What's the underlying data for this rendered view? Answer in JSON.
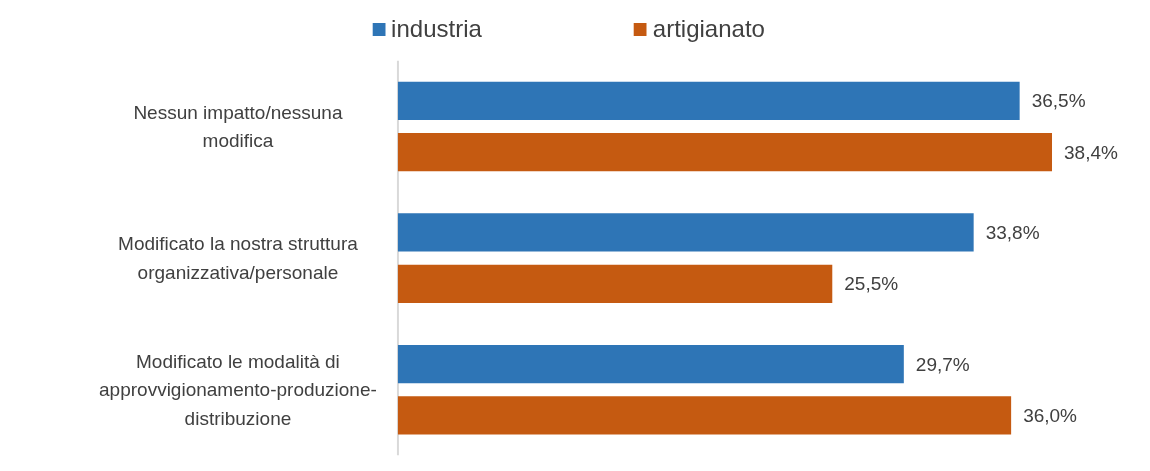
{
  "chart_data": {
    "type": "bar",
    "orientation": "horizontal",
    "categories": [
      "Nessun impatto/nessuna modifica",
      "Modificato la nostra struttura organizzativa/personale",
      "Modificato le modalità di approvvigionamento-produzione-distribuzione"
    ],
    "series": [
      {
        "name": "industria",
        "color": "#2e75b6",
        "values": [
          36.5,
          33.8,
          29.7
        ],
        "value_labels": [
          "36,5%",
          "33,8%",
          "29,7%"
        ]
      },
      {
        "name": "artigianato",
        "color": "#c55a11",
        "values": [
          38.4,
          25.5,
          36.0
        ],
        "value_labels": [
          "38,4%",
          "25,5%",
          "36,0%"
        ]
      }
    ],
    "legend": "top",
    "grid": false
  }
}
